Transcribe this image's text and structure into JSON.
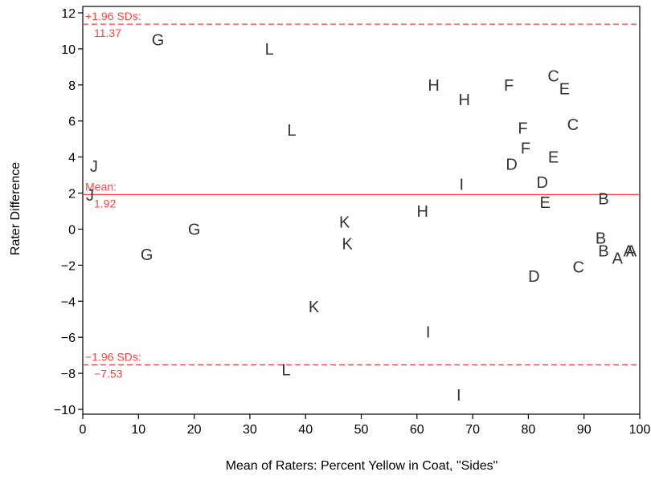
{
  "chart_data": {
    "type": "scatter",
    "title": "",
    "xlabel": "Mean of Raters: Percent Yellow in Coat, \"Sides\"",
    "ylabel": "Rater Difference",
    "xlim": [
      0,
      100
    ],
    "ylim": [
      -10.5,
      12.2
    ],
    "xticks": [
      0,
      10,
      20,
      30,
      40,
      50,
      60,
      70,
      80,
      90,
      100
    ],
    "yticks": [
      -10,
      -8,
      -6,
      -4,
      -2,
      0,
      2,
      4,
      6,
      8,
      10,
      12
    ],
    "xtick_labels": [
      "0",
      "10",
      "20",
      "30",
      "40",
      "50",
      "60",
      "70",
      "80",
      "90",
      "100"
    ],
    "ytick_labels": [
      "−10",
      "−8",
      "−6",
      "−4",
      "−2",
      "0",
      "2",
      "4",
      "6",
      "8",
      "10",
      "12"
    ],
    "grid": false,
    "reference_lines": [
      {
        "label": "+1.96 SDs:",
        "value_label": "11.37",
        "y": 11.37,
        "style": "dashed",
        "color": "#ff4040"
      },
      {
        "label": "Mean:",
        "value_label": "1.92",
        "y": 1.92,
        "style": "solid",
        "color": "#ff4040"
      },
      {
        "label": "−1.96 SDs:",
        "value_label": "−7.53",
        "y": -7.53,
        "style": "dashed",
        "color": "#ff4040"
      }
    ],
    "points": [
      {
        "label": "G",
        "x": 13.5,
        "y": 10.5
      },
      {
        "label": "L",
        "x": 33.5,
        "y": 10.0
      },
      {
        "label": "L",
        "x": 37.5,
        "y": 5.5
      },
      {
        "label": "H",
        "x": 63,
        "y": 8.0
      },
      {
        "label": "H",
        "x": 68.5,
        "y": 7.2
      },
      {
        "label": "F",
        "x": 76.5,
        "y": 8.0
      },
      {
        "label": "C",
        "x": 84.5,
        "y": 8.5
      },
      {
        "label": "E",
        "x": 86.5,
        "y": 7.8
      },
      {
        "label": "F",
        "x": 79,
        "y": 5.6
      },
      {
        "label": "C",
        "x": 88,
        "y": 5.8
      },
      {
        "label": "F",
        "x": 79.5,
        "y": 4.5
      },
      {
        "label": "E",
        "x": 84.5,
        "y": 4.0
      },
      {
        "label": "D",
        "x": 77,
        "y": 3.6
      },
      {
        "label": "J",
        "x": 2,
        "y": 3.5
      },
      {
        "label": "D",
        "x": 82.5,
        "y": 2.6
      },
      {
        "label": "I",
        "x": 68,
        "y": 2.5
      },
      {
        "label": "J",
        "x": 1.3,
        "y": 1.9
      },
      {
        "label": "B",
        "x": 93.5,
        "y": 1.7
      },
      {
        "label": "E",
        "x": 83,
        "y": 1.5
      },
      {
        "label": "H",
        "x": 61,
        "y": 1.0
      },
      {
        "label": "K",
        "x": 47,
        "y": 0.4
      },
      {
        "label": "G",
        "x": 20,
        "y": 0.0
      },
      {
        "label": "B",
        "x": 93,
        "y": -0.5
      },
      {
        "label": "K",
        "x": 47.5,
        "y": -0.8
      },
      {
        "label": "B",
        "x": 93.5,
        "y": -1.2
      },
      {
        "label": "A",
        "x": 98,
        "y": -1.2
      },
      {
        "label": "A",
        "x": 98.5,
        "y": -1.2
      },
      {
        "label": "G",
        "x": 11.5,
        "y": -1.4
      },
      {
        "label": "A",
        "x": 96,
        "y": -1.6
      },
      {
        "label": "C",
        "x": 89,
        "y": -2.1
      },
      {
        "label": "D",
        "x": 81,
        "y": -2.6
      },
      {
        "label": "K",
        "x": 41.5,
        "y": -4.3
      },
      {
        "label": "I",
        "x": 62,
        "y": -5.7
      },
      {
        "label": "L",
        "x": 36.5,
        "y": -7.8
      },
      {
        "label": "I",
        "x": 67.5,
        "y": -9.2
      }
    ]
  }
}
